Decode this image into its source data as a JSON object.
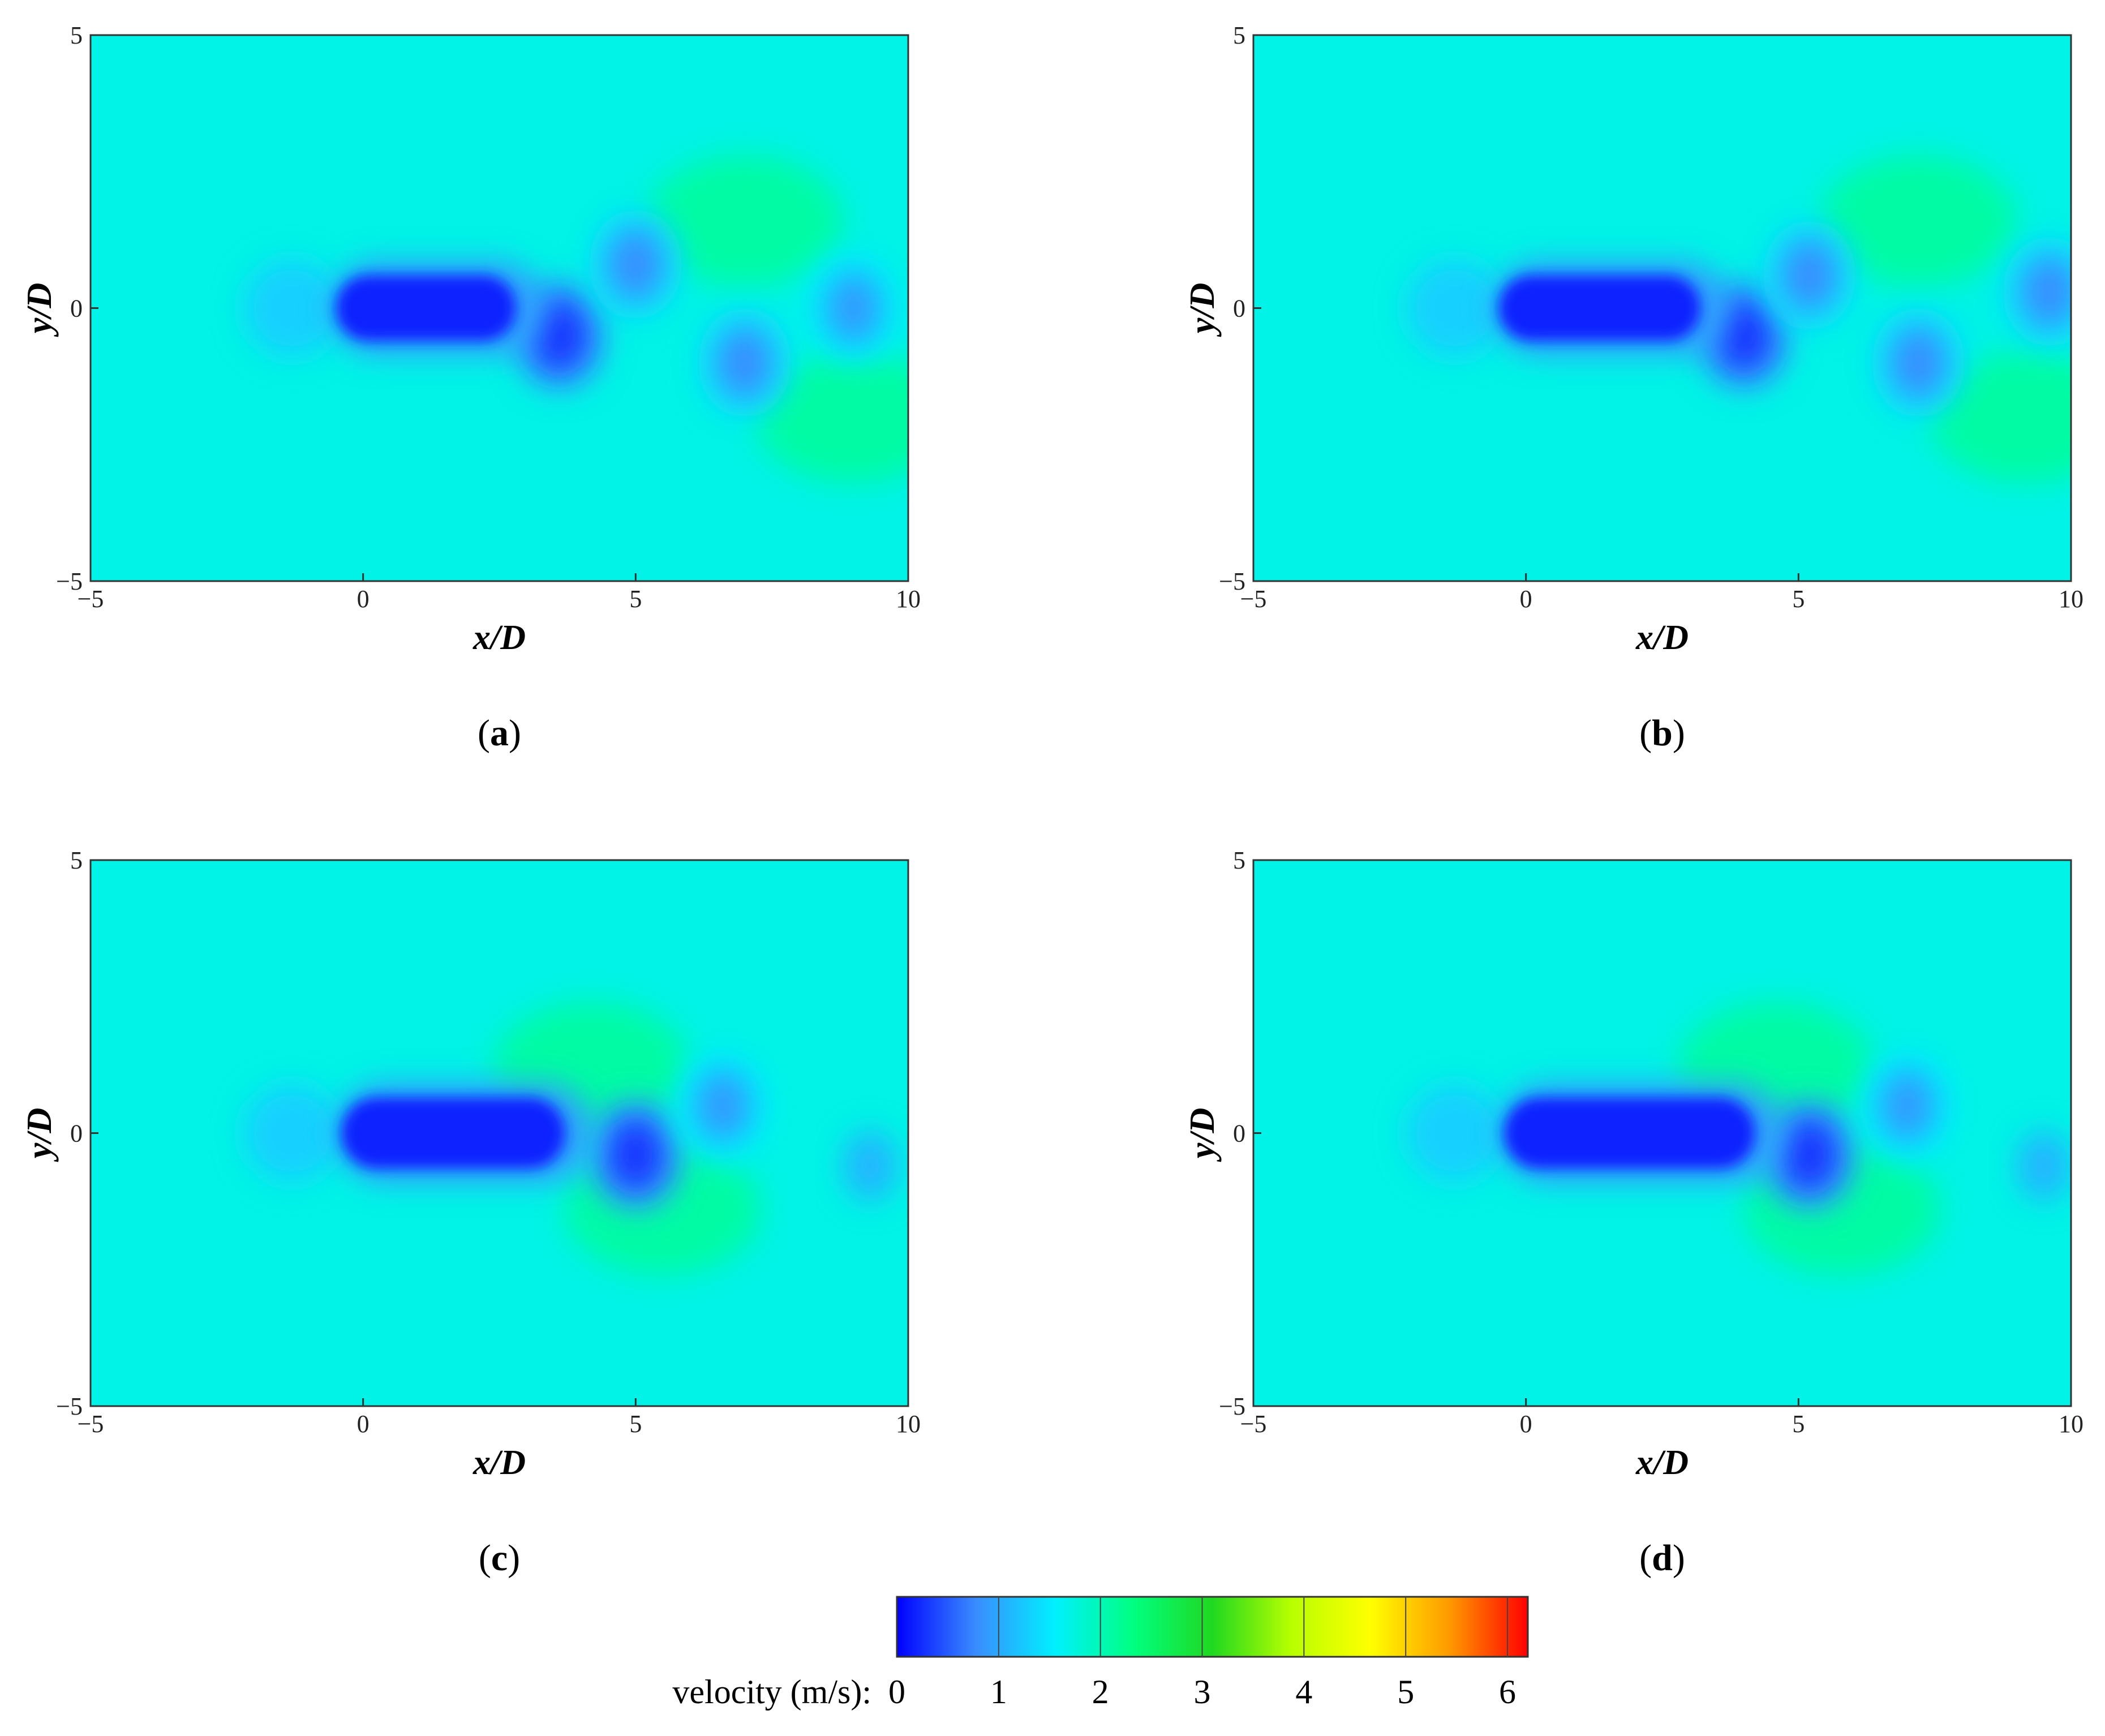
{
  "chart_data": [
    {
      "type": "heatmap",
      "panel": "(a)",
      "panel_letter": "a",
      "xlabel": "x/D",
      "ylabel": "y/D",
      "xlim": [
        -5,
        10
      ],
      "ylim": [
        -5,
        5
      ],
      "xticks": [
        "−5",
        "0",
        "5",
        "10"
      ],
      "yticks": [
        "−5",
        "0",
        "5"
      ],
      "field": "velocity",
      "background_value": 1.7,
      "features": [
        {
          "kind": "wake",
          "x0": -0.5,
          "x1": 2.8,
          "y": 0.0,
          "half_height": 0.6,
          "value": 0.2
        },
        {
          "kind": "vortex",
          "x": 3.6,
          "y": -0.5,
          "value": 0.3
        },
        {
          "kind": "vortex",
          "x": 5.0,
          "y": 0.8,
          "value": 0.8
        },
        {
          "kind": "vortex",
          "x": 7.0,
          "y": -1.0,
          "value": 0.8
        },
        {
          "kind": "vortex",
          "x": 9.0,
          "y": 0.0,
          "value": 0.9
        },
        {
          "kind": "stagnation",
          "x": -1.3,
          "y": 0.0,
          "value": 1.3
        },
        {
          "kind": "high_speed",
          "x": 7.0,
          "y": 1.6,
          "value": 2.2
        },
        {
          "kind": "high_speed",
          "x": 9.0,
          "y": -2.0,
          "value": 2.2
        }
      ]
    },
    {
      "type": "heatmap",
      "panel": "(b)",
      "panel_letter": "b",
      "xlabel": "x/D",
      "ylabel": "y/D",
      "xlim": [
        -5,
        10
      ],
      "ylim": [
        -5,
        5
      ],
      "xticks": [
        "−5",
        "0",
        "5",
        "10"
      ],
      "yticks": [
        "−5",
        "0",
        "5"
      ],
      "field": "velocity",
      "background_value": 1.7,
      "features": [
        {
          "kind": "wake",
          "x0": -0.5,
          "x1": 3.2,
          "y": 0.0,
          "half_height": 0.6,
          "value": 0.2
        },
        {
          "kind": "vortex",
          "x": 4.0,
          "y": -0.5,
          "value": 0.3
        },
        {
          "kind": "vortex",
          "x": 5.2,
          "y": 0.6,
          "value": 0.8
        },
        {
          "kind": "vortex",
          "x": 7.2,
          "y": -1.0,
          "value": 0.8
        },
        {
          "kind": "vortex",
          "x": 9.6,
          "y": 0.3,
          "value": 0.8
        },
        {
          "kind": "stagnation",
          "x": -1.3,
          "y": 0.0,
          "value": 1.3
        },
        {
          "kind": "high_speed",
          "x": 7.2,
          "y": 1.6,
          "value": 2.2
        },
        {
          "kind": "high_speed",
          "x": 9.2,
          "y": -2.0,
          "value": 2.2
        }
      ]
    },
    {
      "type": "heatmap",
      "panel": "(c)",
      "panel_letter": "c",
      "xlabel": "x/D",
      "ylabel": "y/D",
      "xlim": [
        -5,
        10
      ],
      "ylim": [
        -5,
        5
      ],
      "xticks": [
        "−5",
        "0",
        "5",
        "10"
      ],
      "yticks": [
        "−5",
        "0",
        "5"
      ],
      "field": "velocity",
      "background_value": 1.7,
      "features": [
        {
          "kind": "wake",
          "x0": -0.4,
          "x1": 3.7,
          "y": 0.0,
          "half_height": 0.65,
          "value": 0.2
        },
        {
          "kind": "vortex",
          "x": 5.0,
          "y": -0.4,
          "value": 0.3
        },
        {
          "kind": "vortex",
          "x": 6.6,
          "y": 0.5,
          "value": 0.9
        },
        {
          "kind": "vortex",
          "x": 9.3,
          "y": -0.6,
          "value": 1.1
        },
        {
          "kind": "stagnation",
          "x": -1.3,
          "y": 0.0,
          "value": 1.3
        },
        {
          "kind": "high_speed",
          "x": 4.2,
          "y": 1.2,
          "value": 2.2
        },
        {
          "kind": "high_speed",
          "x": 5.5,
          "y": -1.4,
          "value": 2.2
        }
      ]
    },
    {
      "type": "heatmap",
      "panel": "(d)",
      "panel_letter": "d",
      "xlabel": "x/D",
      "ylabel": "y/D",
      "xlim": [
        -5,
        10
      ],
      "ylim": [
        -5,
        5
      ],
      "xticks": [
        "−5",
        "0",
        "5",
        "10"
      ],
      "yticks": [
        "−5",
        "0",
        "5"
      ],
      "field": "velocity",
      "background_value": 1.7,
      "features": [
        {
          "kind": "wake",
          "x0": -0.4,
          "x1": 4.2,
          "y": 0.0,
          "half_height": 0.65,
          "value": 0.2
        },
        {
          "kind": "vortex",
          "x": 5.2,
          "y": -0.4,
          "value": 0.3
        },
        {
          "kind": "vortex",
          "x": 7.0,
          "y": 0.5,
          "value": 0.9
        },
        {
          "kind": "vortex",
          "x": 9.5,
          "y": -0.6,
          "value": 1.1
        },
        {
          "kind": "stagnation",
          "x": -1.3,
          "y": 0.0,
          "value": 1.3
        },
        {
          "kind": "high_speed",
          "x": 4.6,
          "y": 1.2,
          "value": 2.2
        },
        {
          "kind": "high_speed",
          "x": 5.8,
          "y": -1.4,
          "value": 2.2
        }
      ]
    }
  ],
  "colorbar": {
    "label": "velocity (m/s):",
    "min": 0,
    "max": 6.2,
    "ticks": [
      "0",
      "1",
      "2",
      "3",
      "4",
      "5",
      "6"
    ],
    "tick_values": [
      0,
      1,
      2,
      3,
      4,
      5,
      6
    ],
    "colors": [
      "#0000ff",
      "#3a8cff",
      "#00f0ff",
      "#00ff80",
      "#20d820",
      "#b8ff00",
      "#ffff00",
      "#ff9a00",
      "#ff0000"
    ]
  }
}
